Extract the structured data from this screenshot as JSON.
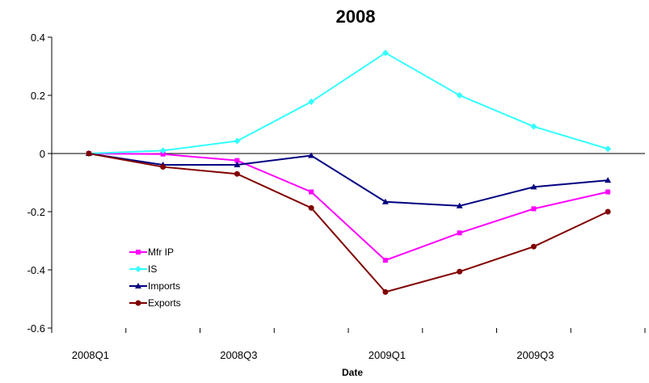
{
  "chart_data": {
    "type": "line",
    "title": "2008",
    "xlabel": "Date",
    "ylabel": "",
    "ylim": [
      -0.6,
      0.4
    ],
    "yticks": [
      0.4,
      0.2,
      0,
      -0.2,
      -0.4,
      -0.6
    ],
    "ytick_labels": [
      "0.4",
      "0.2",
      "0",
      "-0.2",
      "-0.4",
      "-0.6"
    ],
    "categories": [
      "2008Q1",
      "2008Q2",
      "2008Q3",
      "2008Q4",
      "2009Q1",
      "2009Q2",
      "2009Q3",
      "2009Q4"
    ],
    "xtick_labels": [
      "2008Q1",
      "",
      "2008Q3",
      "",
      "2009Q1",
      "",
      "2009Q3",
      ""
    ],
    "grid": false,
    "legend_position": "lower-left",
    "series": [
      {
        "name": "Mfr IP",
        "color": "#ff00ff",
        "marker": "square",
        "values": [
          0,
          -0.002,
          -0.024,
          -0.132,
          -0.367,
          -0.273,
          -0.19,
          -0.132
        ]
      },
      {
        "name": "IS",
        "color": "#33ffff",
        "marker": "diamond",
        "values": [
          0,
          0.01,
          0.043,
          0.178,
          0.346,
          0.2,
          0.093,
          0.016
        ]
      },
      {
        "name": "Imports",
        "color": "#000080",
        "marker": "triangle",
        "values": [
          0,
          -0.039,
          -0.039,
          -0.007,
          -0.166,
          -0.18,
          -0.115,
          -0.092
        ]
      },
      {
        "name": "Exports",
        "color": "#800000",
        "marker": "circle",
        "values": [
          0,
          -0.046,
          -0.07,
          -0.187,
          -0.476,
          -0.406,
          -0.32,
          -0.2
        ]
      }
    ]
  }
}
